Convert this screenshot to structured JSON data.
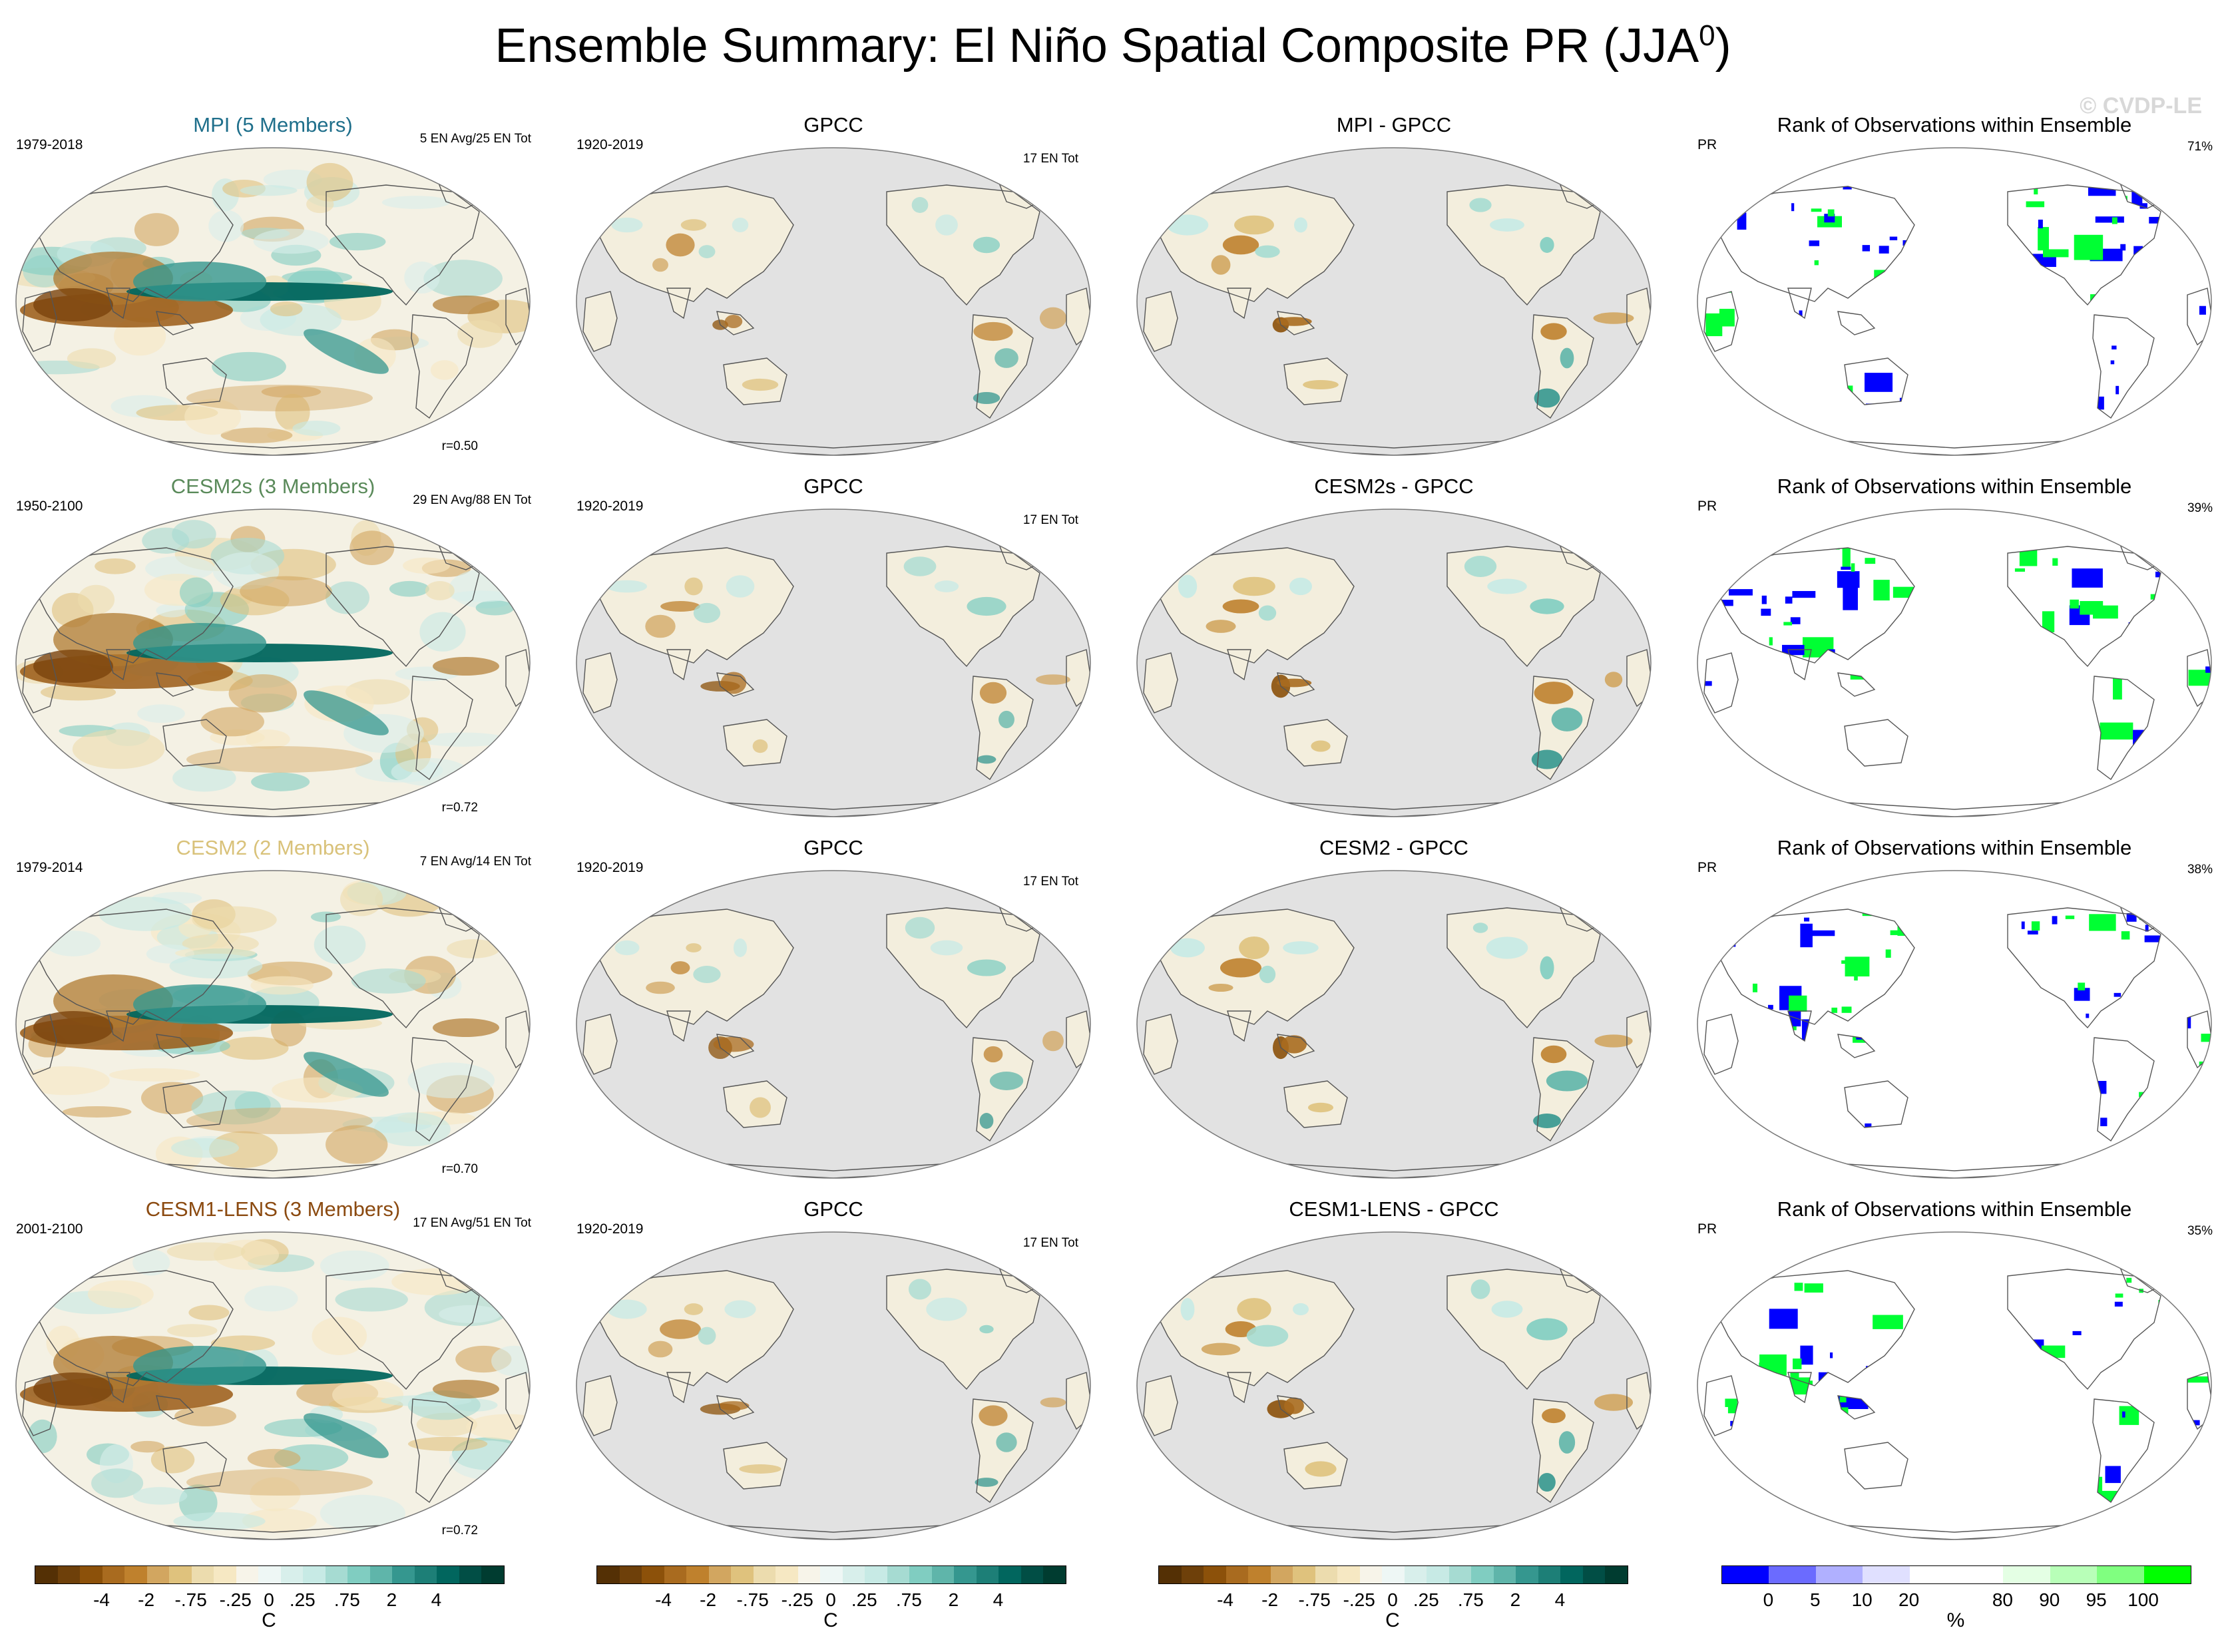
{
  "title": {
    "main": "Ensemble Summary: El Niño Spatial Composite PR (JJA",
    "sup": "0",
    "close": ")"
  },
  "watermark": "© CVDP-LE",
  "obs": {
    "title": "GPCC",
    "years": "1920-2019",
    "count": "17 EN Tot"
  },
  "rank": {
    "title": "Rank of Observations within Ensemble",
    "var": "PR"
  },
  "rows": [
    {
      "model": "MPI (5 Members)",
      "color": "#1f6f8b",
      "years": "1979-2018",
      "counts": "5 EN Avg/25 EN Tot",
      "corr": "r=0.50",
      "diff": "MPI - GPCC",
      "rank_pct": "71%"
    },
    {
      "model": "CESM2s (3 Members)",
      "color": "#5a8a5a",
      "years": "1950-2100",
      "counts": "29 EN Avg/88 EN Tot",
      "corr": "r=0.72",
      "diff": "CESM2s - GPCC",
      "rank_pct": "39%"
    },
    {
      "model": "CESM2 (2 Members)",
      "color": "#d9c27a",
      "years": "1979-2014",
      "counts": "7 EN Avg/14 EN Tot",
      "corr": "r=0.70",
      "diff": "CESM2 - GPCC",
      "rank_pct": "38%"
    },
    {
      "model": "CESM1-LENS (3 Members)",
      "color": "#8b4a10",
      "years": "2001-2100",
      "counts": "17 EN Avg/51 EN Tot",
      "corr": "r=0.72",
      "diff": "CESM1-LENS - GPCC",
      "rank_pct": "35%"
    }
  ],
  "colorbar_div": {
    "colors": [
      "#543005",
      "#6e400a",
      "#8c510a",
      "#a96b1f",
      "#bf812d",
      "#d2a660",
      "#dfc27d",
      "#ecdcae",
      "#f6e8c3",
      "#f7f4e9",
      "#eef7f5",
      "#d8efeb",
      "#c7eae5",
      "#a6dbd2",
      "#80cdc1",
      "#5fb5aa",
      "#35978f",
      "#1d7f77",
      "#01665e",
      "#014e45",
      "#003c30"
    ],
    "ticks": [
      "-4",
      "-2",
      "-.75",
      "-.25",
      "0",
      ".25",
      ".75",
      "2",
      "4"
    ],
    "unit": "C"
  },
  "colorbar_rank": {
    "colors": [
      "#0000ff",
      "#6b6bff",
      "#b0b0ff",
      "#e0e0ff",
      "#ffffff",
      "#ffffff",
      "#e4ffe4",
      "#b8ffb8",
      "#80ff80",
      "#00ff00"
    ],
    "ticks": [
      "0",
      "5",
      "10",
      "20",
      "80",
      "90",
      "95",
      "100"
    ],
    "unit": "%"
  }
}
